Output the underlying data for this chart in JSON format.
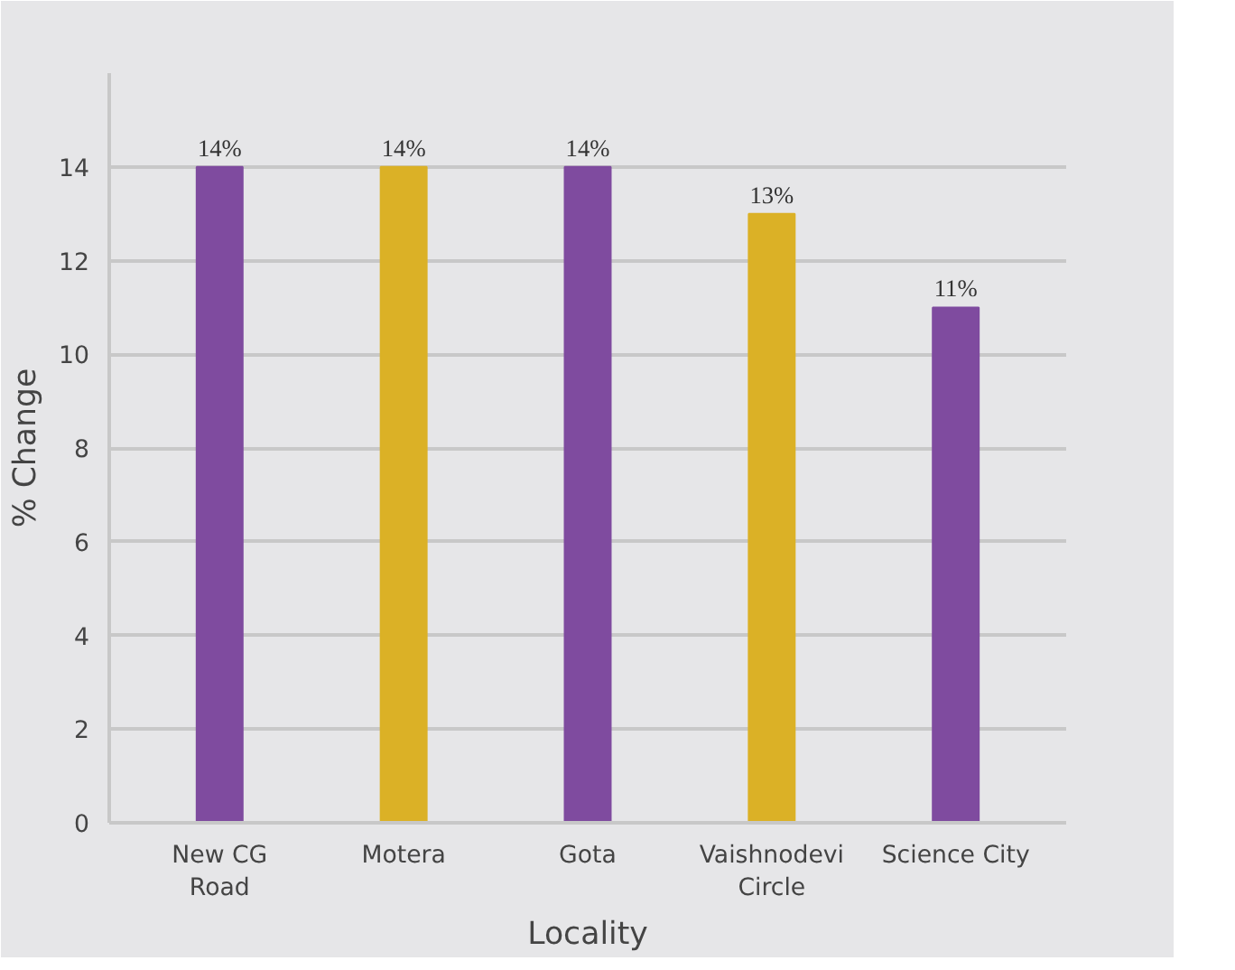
{
  "chart_data": {
    "type": "bar",
    "xlabel": "Locality",
    "ylabel": "% Change",
    "categories": [
      "New CG\nRoad",
      "Motera",
      "Gota",
      "Vaishnodevi\nCircle",
      "Science City"
    ],
    "values": [
      14,
      14,
      14,
      13,
      11
    ],
    "colors": [
      "#7f4b9f",
      "#dbb126",
      "#7f4b9f",
      "#dbb126",
      "#7f4b9f"
    ],
    "value_labels": [
      "14%",
      "14%",
      "14%",
      "13%",
      "11%"
    ],
    "ylim": [
      0,
      16
    ],
    "yticks": [
      0,
      2,
      4,
      6,
      8,
      10,
      12,
      14
    ],
    "grid": "y"
  }
}
